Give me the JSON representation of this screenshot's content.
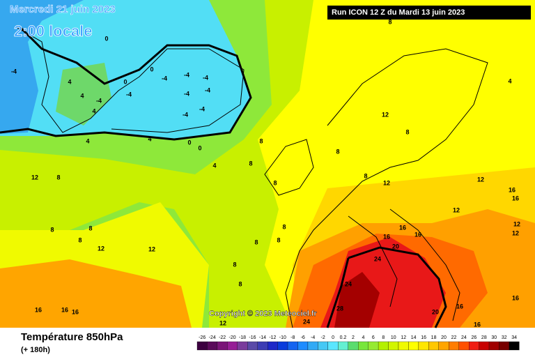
{
  "header": {
    "date": "Mercredi 21 juin 2023",
    "time": "2:00 locale",
    "run": "Run ICON 12 Z du Mardi 13 juin 2023"
  },
  "map": {
    "copyright": "Copyright © 2023 Meteociel.fr",
    "contour_labels": [
      -4,
      4,
      4,
      4,
      -4,
      0,
      -4,
      0,
      -4,
      -4,
      -4,
      -4,
      -4,
      -4,
      -4,
      4,
      4,
      0,
      0,
      4,
      8,
      8,
      12,
      8,
      8,
      8,
      12,
      8,
      8,
      12,
      8,
      4,
      12,
      16,
      16,
      12,
      12,
      12,
      16,
      16,
      16,
      20,
      24,
      24,
      28,
      24,
      20,
      16,
      16,
      16,
      12,
      12,
      16,
      16,
      16,
      12,
      8,
      8,
      8,
      8,
      8,
      8,
      8,
      8,
      0
    ]
  },
  "footer": {
    "title": "Température 850hPa",
    "subtitle": "(+ 180h)"
  },
  "scale": {
    "labels": [
      -26,
      -24,
      -22,
      -20,
      -18,
      -16,
      -14,
      -12,
      -10,
      -8,
      -6,
      -4,
      -2,
      0,
      0.2,
      2,
      4,
      6,
      8,
      10,
      12,
      14,
      16,
      18,
      20,
      22,
      24,
      26,
      28,
      30,
      32,
      34
    ],
    "colors": [
      "#3c0040",
      "#5a0a5a",
      "#7a1478",
      "#961e96",
      "#7a3c9c",
      "#5a4aa8",
      "#3c3cb4",
      "#1e28c8",
      "#0a3cdc",
      "#1464f0",
      "#1e8cff",
      "#32aaf5",
      "#46c8f5",
      "#5ae6ff",
      "#64f0d2",
      "#5adc6e",
      "#78e63c",
      "#96ea32",
      "#b4f000",
      "#d2f500",
      "#f0fa00",
      "#ffff00",
      "#ffe600",
      "#ffc800",
      "#ffa500",
      "#ff7d00",
      "#ff5000",
      "#f01e14",
      "#c80000",
      "#a00000",
      "#780000",
      "#000000"
    ]
  }
}
